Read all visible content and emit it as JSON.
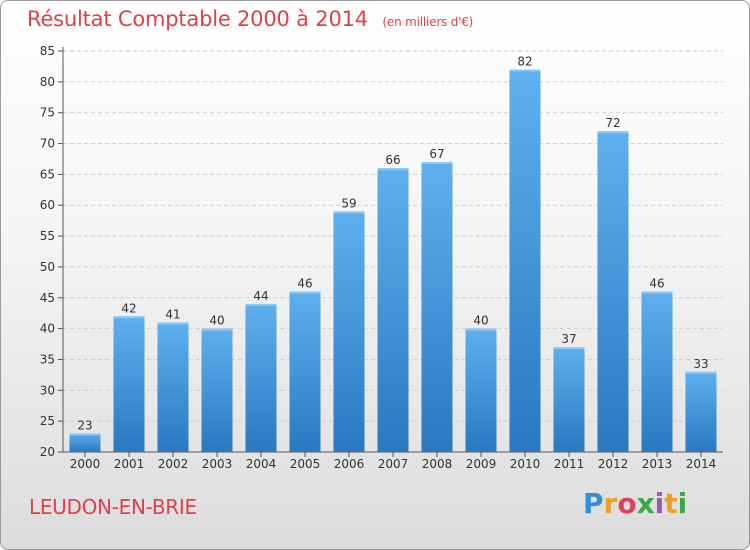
{
  "chart_data": {
    "type": "bar",
    "title": "Résultat Comptable 2000 à 2014",
    "subtitle": "(en milliers d'€)",
    "categories": [
      "2000",
      "2001",
      "2002",
      "2003",
      "2004",
      "2005",
      "2006",
      "2007",
      "2008",
      "2009",
      "2010",
      "2011",
      "2012",
      "2013",
      "2014"
    ],
    "values": [
      23,
      42,
      41,
      40,
      44,
      46,
      59,
      66,
      67,
      40,
      82,
      37,
      72,
      46,
      33
    ],
    "ylim": [
      20,
      85
    ],
    "yticks": [
      20,
      25,
      30,
      35,
      40,
      45,
      50,
      55,
      60,
      65,
      70,
      75,
      80,
      85
    ],
    "grid": true,
    "bar_color": "#4a9de0",
    "bar_color_dark": "#2a78c0"
  },
  "footer": {
    "city": "LEUDON-EN-BRIE",
    "logo_parts": [
      "P",
      "r",
      "o",
      "x",
      "i",
      "t",
      "i"
    ]
  }
}
